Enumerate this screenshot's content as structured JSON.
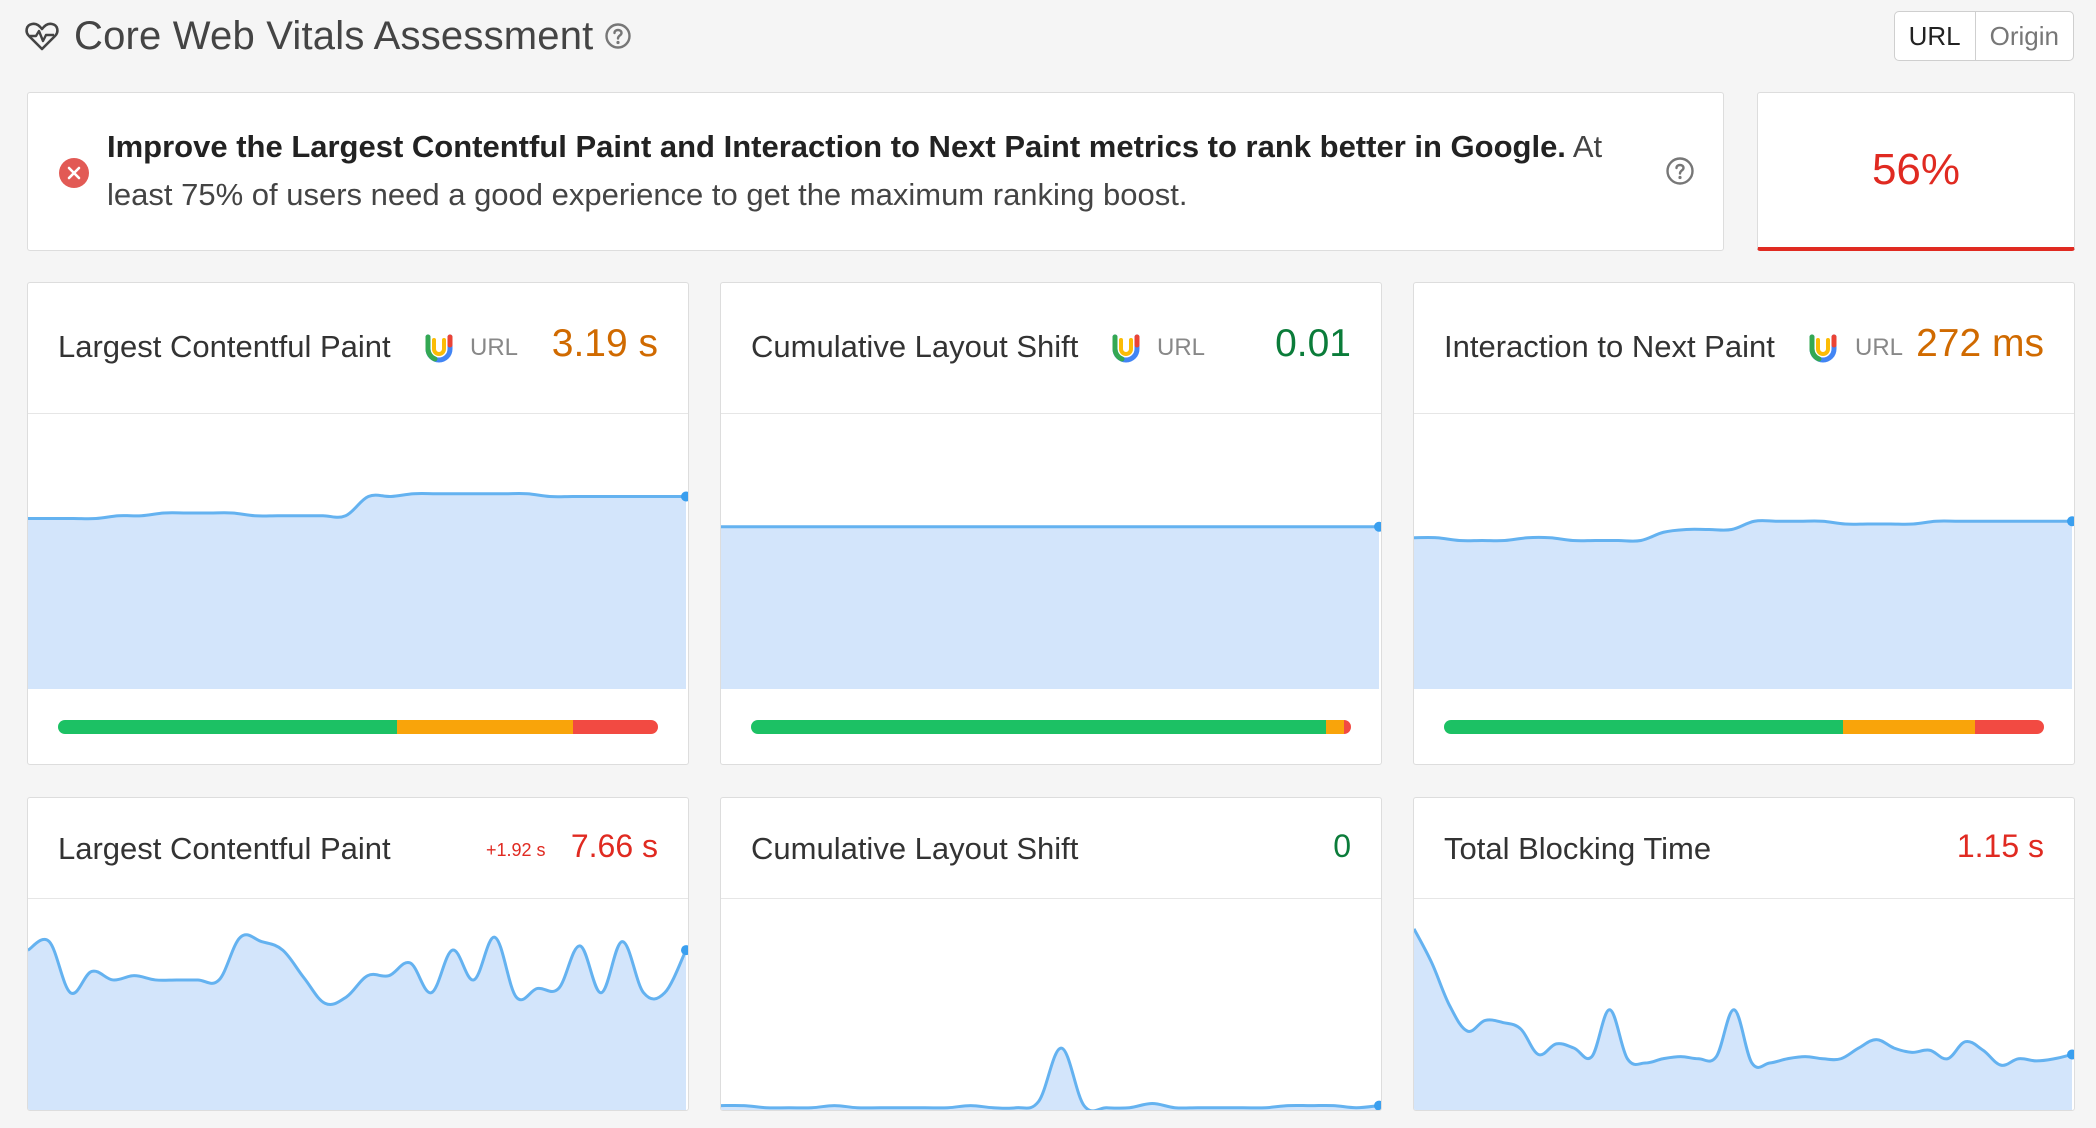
{
  "header": {
    "title": "Core Web Vitals Assessment"
  },
  "toggle": {
    "options": [
      "URL",
      "Origin"
    ],
    "selected": "URL"
  },
  "banner": {
    "bold": "Improve the Largest Contentful Paint and Interaction to Next Paint metrics to rank better in Google.",
    "rest": " At least 75% of users need a good experience to get the maximum ranking boost."
  },
  "score": {
    "value": "56%"
  },
  "colors": {
    "good": "#1cc164",
    "ni": "#f9a40a",
    "poor": "#f24a42",
    "chartFill": "#d3e5fb",
    "chartLine": "#64b2f0",
    "fail": "#e02a21"
  },
  "field_cards": [
    {
      "title": "Largest Contentful Paint",
      "tag": "URL",
      "value": "3.19 s",
      "status": "orange",
      "dist": {
        "good": 56.5,
        "ni": 29.4,
        "poor": 14.1
      }
    },
    {
      "title": "Cumulative Layout Shift",
      "tag": "URL",
      "value": "0.01",
      "status": "green",
      "dist": {
        "good": 95.8,
        "ni": 3.0,
        "poor": 1.2
      }
    },
    {
      "title": "Interaction to Next Paint",
      "tag": "URL",
      "value": "272 ms",
      "status": "orange",
      "dist": {
        "good": 66.5,
        "ni": 22.0,
        "poor": 11.5
      }
    }
  ],
  "lab_cards": [
    {
      "title": "Largest Contentful Paint",
      "delta": "+1.92 s",
      "value": "7.66 s",
      "status": "red"
    },
    {
      "title": "Cumulative Layout Shift",
      "delta": "",
      "value": "0",
      "status": "green"
    },
    {
      "title": "Total Blocking Time",
      "delta": "",
      "value": "1.15 s",
      "status": "red"
    }
  ],
  "chart_data": [
    {
      "type": "area",
      "series": [
        {
          "values": [
            62,
            62,
            62,
            62,
            63,
            63,
            64,
            64,
            64,
            64,
            63,
            63,
            63,
            63,
            63,
            70,
            70,
            71,
            71,
            71,
            71,
            71,
            71,
            70,
            70,
            70,
            70,
            70,
            70,
            70
          ]
        }
      ],
      "ylim": [
        0,
        100
      ]
    },
    {
      "type": "area",
      "series": [
        {
          "values": [
            59,
            59,
            59,
            59,
            59,
            59,
            59,
            59,
            59,
            59,
            59,
            59,
            59,
            59,
            59,
            59,
            59,
            59,
            59,
            59,
            59,
            59,
            59,
            59,
            59,
            59,
            59,
            59,
            59,
            59
          ]
        }
      ],
      "ylim": [
        0,
        100
      ]
    },
    {
      "type": "area",
      "series": [
        {
          "values": [
            55,
            55,
            54,
            54,
            54,
            55,
            55,
            54,
            54,
            54,
            54,
            57,
            58,
            58,
            58,
            61,
            61,
            61,
            61,
            60,
            60,
            60,
            60,
            61,
            61,
            61,
            61,
            61,
            61,
            61
          ]
        }
      ],
      "ylim": [
        0,
        100
      ]
    },
    {
      "type": "area",
      "series": [
        {
          "values": [
            76,
            80,
            56,
            66,
            62,
            64,
            62,
            62,
            62,
            62,
            82,
            80,
            76,
            63,
            51,
            54,
            64,
            64,
            70,
            56,
            76,
            62,
            82,
            54,
            58,
            58,
            78,
            56,
            80,
            56,
            56,
            76
          ]
        }
      ],
      "ylim": [
        0,
        100
      ]
    },
    {
      "type": "area",
      "series": [
        {
          "values": [
            3,
            3,
            2,
            2,
            2,
            3,
            2,
            2,
            2,
            2,
            2,
            3,
            2,
            2,
            5,
            30,
            3,
            2,
            2,
            4,
            2,
            2,
            2,
            2,
            2,
            3,
            3,
            3,
            2,
            3
          ]
        }
      ],
      "ylim": [
        0,
        100
      ]
    },
    {
      "type": "area",
      "series": [
        {
          "values": [
            86,
            70,
            50,
            38,
            43,
            42,
            39,
            27,
            32,
            30,
            26,
            48,
            25,
            23,
            25,
            26,
            25,
            26,
            48,
            23,
            23,
            25,
            26,
            25,
            25,
            30,
            34,
            30,
            28,
            29,
            25,
            33,
            29,
            22,
            25,
            24,
            25,
            27
          ]
        }
      ],
      "ylim": [
        0,
        100
      ]
    }
  ]
}
